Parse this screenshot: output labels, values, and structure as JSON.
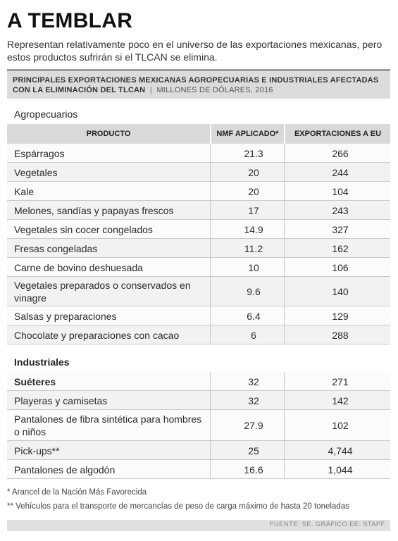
{
  "title": "A TEMBLAR",
  "subtitle": "Representan relativamente poco en el universo de las exportaciones mexicanas, pero estos productos sufrirán si el TLCAN se elimina.",
  "table_header": {
    "title": "PRINCIPALES EXPORTACIONES MEXICANAS AGROPECUARIAS E INDUSTRIALES AFECTADAS CON LA ELIMINACIÓN DEL TLCAN",
    "unit": "MILLONES DE DÓLARES, 2016"
  },
  "columns": {
    "product": "PRODUCTO",
    "nmf": "NMF APLICADO*",
    "exports": "EXPORTACIONES A EU"
  },
  "sections": {
    "agro": "Agropecuarios",
    "industrial": "Industriales"
  },
  "agro_rows": [
    {
      "name": "Espárragos",
      "nmf": "21.3",
      "exports": "266"
    },
    {
      "name": "Vegetales",
      "nmf": "20",
      "exports": "244"
    },
    {
      "name": "Kale",
      "nmf": "20",
      "exports": "104"
    },
    {
      "name": "Melones, sandías y papayas frescos",
      "nmf": "17",
      "exports": "243"
    },
    {
      "name": "Vegetales sin cocer congelados",
      "nmf": "14.9",
      "exports": "327"
    },
    {
      "name": "Fresas congeladas",
      "nmf": "11.2",
      "exports": "162"
    },
    {
      "name": "Carne de bovino deshuesada",
      "nmf": "10",
      "exports": "106"
    },
    {
      "name": "Vegetales preparados o conservados en vinagre",
      "nmf": "9.6",
      "exports": "140"
    },
    {
      "name": "Salsas y preparaciones",
      "nmf": "6.4",
      "exports": "129"
    },
    {
      "name": "Chocolate y preparaciones con cacao",
      "nmf": "6",
      "exports": "288"
    }
  ],
  "industrial_rows": [
    {
      "name": "Suéteres",
      "nmf": "32",
      "exports": "271"
    },
    {
      "name": "Playeras y camisetas",
      "nmf": "32",
      "exports": "142"
    },
    {
      "name": "Pantalones de fibra sintética para hombres o niños",
      "nmf": "27.9",
      "exports": "102"
    },
    {
      "name": "Pick-ups**",
      "nmf": "25",
      "exports": "4,744"
    },
    {
      "name": "Pantalones de algodón",
      "nmf": "16.6",
      "exports": "1,044"
    }
  ],
  "notes": {
    "note1": "* Arancel de la Nación Más Favorecida",
    "note2": "** Vehículos para el transporte de mercancías de peso de carga máximo de hasta 20 toneladas"
  },
  "source": "FUENTE: SE. GRÁFICO EE: STAFF."
}
